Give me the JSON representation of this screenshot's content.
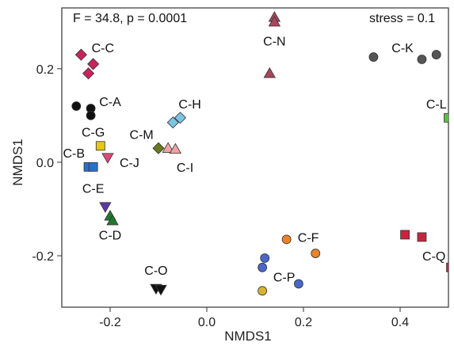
{
  "chart_data": {
    "type": "scatter",
    "title": "",
    "xlabel": "NMDS1",
    "ylabel": "NMDS1",
    "xlim": [
      -0.3,
      0.5
    ],
    "ylim": [
      -0.31,
      0.33
    ],
    "x_ticks": [
      {
        "value": -0.2,
        "label": "-0.2"
      },
      {
        "value": 0.0,
        "label": "0.0"
      },
      {
        "value": 0.2,
        "label": "0.2"
      },
      {
        "value": 0.4,
        "label": "0.4"
      }
    ],
    "y_ticks": [
      {
        "value": -0.2,
        "label": "-0.2"
      },
      {
        "value": 0.0,
        "label": "0.0"
      },
      {
        "value": 0.2,
        "label": "0.2"
      }
    ],
    "grid": false,
    "annotations": {
      "stats": "F = 34.8, p = 0.0001",
      "stress": "stress = 0.1"
    },
    "groups": [
      {
        "label": "C-A",
        "marker": "circle",
        "color": "#111111",
        "points": [
          [
            -0.27,
            0.12
          ],
          [
            -0.24,
            0.115
          ],
          [
            -0.24,
            0.1
          ]
        ],
        "label_at": [
          -0.2,
          0.13
        ]
      },
      {
        "label": "C-B",
        "marker": "square",
        "color": "#2a6fc9",
        "points": [
          [
            -0.245,
            -0.01
          ],
          [
            -0.235,
            -0.01
          ]
        ],
        "label_at": [
          -0.275,
          0.02
        ]
      },
      {
        "label": "C-C",
        "marker": "diamond",
        "color": "#c8245c",
        "points": [
          [
            -0.26,
            0.23
          ],
          [
            -0.235,
            0.21
          ],
          [
            -0.245,
            0.19
          ]
        ],
        "label_at": [
          -0.215,
          0.245
        ]
      },
      {
        "label": "C-D",
        "marker": "triangle-up",
        "color": "#1f7a2e",
        "points": [
          [
            -0.2,
            -0.115
          ],
          [
            -0.195,
            -0.125
          ]
        ],
        "label_at": [
          -0.2,
          -0.155
        ]
      },
      {
        "label": "C-E",
        "marker": "triangle-down",
        "color": "#5a3aa0",
        "points": [
          [
            -0.21,
            -0.095
          ]
        ],
        "label_at": [
          -0.235,
          -0.055
        ]
      },
      {
        "label": "C-F",
        "marker": "circle",
        "color": "#e8832a",
        "points": [
          [
            0.165,
            -0.165
          ],
          [
            0.225,
            -0.195
          ]
        ],
        "label_at": [
          0.21,
          -0.16
        ]
      },
      {
        "label": "C-G",
        "marker": "square",
        "color": "#e6c616",
        "points": [
          [
            -0.22,
            0.035
          ]
        ],
        "label_at": [
          -0.235,
          0.065
        ]
      },
      {
        "label": "C-H",
        "marker": "diamond",
        "color": "#7cc4e4",
        "points": [
          [
            -0.07,
            0.085
          ],
          [
            -0.055,
            0.095
          ]
        ],
        "label_at": [
          -0.035,
          0.125
        ]
      },
      {
        "label": "C-I",
        "marker": "triangle-up",
        "color": "#f0a3a3",
        "points": [
          [
            -0.08,
            0.03
          ],
          [
            -0.065,
            0.028
          ]
        ],
        "label_at": [
          -0.045,
          -0.01
        ]
      },
      {
        "label": "C-J",
        "marker": "triangle-down",
        "color": "#e0487a",
        "points": [
          [
            -0.205,
            0.01
          ]
        ],
        "label_at": [
          -0.16,
          0.0
        ]
      },
      {
        "label": "C-K",
        "marker": "circle",
        "color": "#555555",
        "points": [
          [
            0.345,
            0.225
          ],
          [
            0.445,
            0.22
          ],
          [
            0.475,
            0.23
          ]
        ],
        "label_at": [
          0.405,
          0.245
        ]
      },
      {
        "label": "C-L",
        "marker": "square",
        "color": "#5bbf45",
        "points": [
          [
            0.5,
            0.095
          ],
          [
            0.525,
            0.102
          ],
          [
            0.535,
            0.096
          ]
        ],
        "label_at": [
          0.475,
          0.125
        ]
      },
      {
        "label": "C-M",
        "marker": "diamond",
        "color": "#6b7a1e",
        "points": [
          [
            -0.1,
            0.03
          ]
        ],
        "label_at": [
          -0.135,
          0.06
        ]
      },
      {
        "label": "C-N",
        "marker": "triangle-up",
        "color": "#a8475c",
        "points": [
          [
            0.14,
            0.31
          ],
          [
            0.14,
            0.3
          ],
          [
            0.13,
            0.19
          ]
        ],
        "label_at": [
          0.14,
          0.26
        ]
      },
      {
        "label": "C-O",
        "marker": "triangle-down",
        "color": "#111111",
        "points": [
          [
            -0.105,
            -0.27
          ],
          [
            -0.095,
            -0.272
          ]
        ],
        "label_at": [
          -0.105,
          -0.23
        ]
      },
      {
        "label": "C-P",
        "marker": "circle",
        "color": "#4a66c8",
        "points": [
          [
            0.12,
            -0.205
          ],
          [
            0.115,
            -0.225
          ],
          [
            0.19,
            -0.26
          ]
        ],
        "label_at": [
          0.16,
          -0.245
        ]
      },
      {
        "label": "C-P",
        "marker": "circle",
        "color": "#d8b234",
        "points": [
          [
            0.115,
            -0.275
          ]
        ],
        "label_at": null
      },
      {
        "label": "C-Q",
        "marker": "square",
        "color": "#c8243e",
        "points": [
          [
            0.41,
            -0.155
          ],
          [
            0.445,
            -0.16
          ],
          [
            0.505,
            -0.225
          ]
        ],
        "label_at": [
          0.47,
          -0.2
        ]
      }
    ]
  }
}
